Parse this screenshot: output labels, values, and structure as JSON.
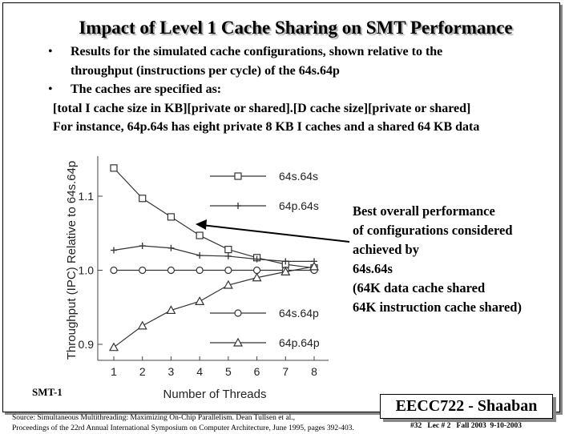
{
  "slide": {
    "title": "Impact of Level 1 Cache Sharing on SMT Performance",
    "bullets": [
      {
        "lines": [
          "Results for the simulated cache configurations, shown relative to the",
          "throughput (instructions per cycle) of the 64s.64p"
        ]
      },
      {
        "lines": [
          "The caches are specified as:"
        ]
      }
    ],
    "spec_lines": [
      "[total I cache size in KB][private or shared].[D cache size][private or shared]",
      "For instance, 64p.64s has eight private 8 KB I caches and a shared 64 KB data"
    ],
    "annotation": "Best overall performance\nof configurations considered\nachieved by\n64s.64s\n(64K data cache shared\n64K instruction cache shared)",
    "smt_label": "SMT-1",
    "source_lines": [
      "Source: Simultaneous Multithreading: Maximizing On-Chip Parallelism. Dean Tullsen et al.,",
      "Proceedings of the 22rd Annual International Symposium on Computer Architecture, June 1995, pages 392-403."
    ],
    "course_box": "EECC722 - Shaaban",
    "footer": "#32   Lec # 2   Fall 2003  9-10-2003"
  },
  "chart_data": {
    "type": "line",
    "xlabel": "Number of Threads",
    "ylabel": "Throughput (IPC) Relative to 64s.64p",
    "x": [
      1,
      2,
      3,
      4,
      5,
      6,
      7,
      8
    ],
    "x_ticks": [
      "1",
      "2",
      "3",
      "4",
      "5",
      "6",
      "7",
      "8"
    ],
    "y_ticks": [
      "0.9",
      "1.0",
      "1.1"
    ],
    "y_tick_values": [
      0.9,
      1.0,
      1.1
    ],
    "xlim": [
      1,
      8
    ],
    "ylim": [
      0.9,
      1.1
    ],
    "grid": false,
    "legend_position": "right",
    "series": [
      {
        "name": "64s.64s",
        "marker": "square",
        "values": [
          1.138,
          1.097,
          1.072,
          1.047,
          1.028,
          1.017,
          1.008,
          1.003
        ]
      },
      {
        "name": "64p.64s",
        "marker": "plus",
        "values": [
          1.027,
          1.033,
          1.03,
          1.02,
          1.019,
          1.015,
          1.012,
          1.012
        ]
      },
      {
        "name": "64s.64p",
        "marker": "circle",
        "values": [
          1.0,
          1.0,
          1.0,
          1.0,
          1.0,
          1.0,
          1.0,
          1.0
        ]
      },
      {
        "name": "64p.64p",
        "marker": "triangle",
        "values": [
          0.896,
          0.925,
          0.946,
          0.958,
          0.98,
          0.99,
          0.998,
          1.005
        ]
      }
    ]
  }
}
